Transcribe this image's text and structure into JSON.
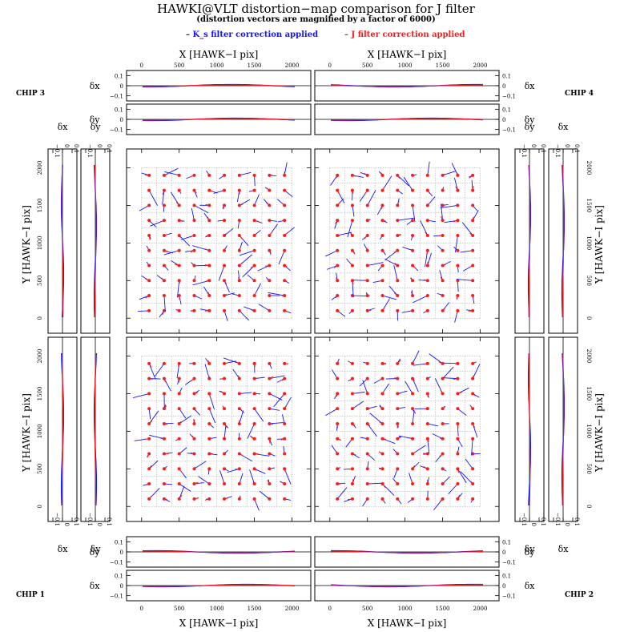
{
  "title": "HAWKI@VLT distortion−map comparison for J filter",
  "subtitle": "(distortion vectors are magnified by a factor of 6000)",
  "legend": {
    "blue": "– K_s filter correction applied",
    "red": "– J filter correction applied"
  },
  "colors": {
    "blue": "#1414ff",
    "red": "#ff1a1a",
    "grid": "#9a9a9a",
    "axis": "#000000"
  },
  "chips": {
    "c1": "CHIP 1",
    "c2": "CHIP 2",
    "c3": "CHIP 3",
    "c4": "CHIP 4"
  },
  "axis_labels": {
    "x": "X [HAWK−I pix]",
    "y": "Y [HAWK−I pix]",
    "dx": "δx",
    "dy": "δy"
  },
  "chart_data": {
    "type": "vector-field",
    "magnification": 6000,
    "x_ticks": [
      0,
      500,
      1000,
      1500,
      2000
    ],
    "y_ticks": [
      0,
      500,
      1000,
      1500,
      2000
    ],
    "delta_ticks": [
      "0.1",
      "0",
      "−0.1"
    ],
    "xlim": [
      -200,
      2250
    ],
    "ylim": [
      -200,
      2250
    ],
    "delta_lim": [
      -0.15,
      0.15
    ],
    "grid_points": [
      100,
      300,
      500,
      700,
      900,
      1100,
      1300,
      1500,
      1700,
      1900
    ],
    "series": [
      {
        "name": "K_s filter correction applied",
        "color": "blue"
      },
      {
        "name": "J filter correction applied",
        "color": "red"
      }
    ]
  }
}
